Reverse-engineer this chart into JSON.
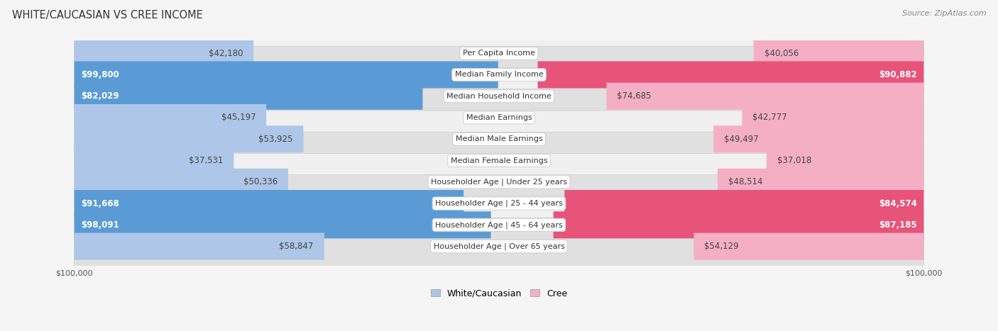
{
  "title": "WHITE/CAUCASIAN VS CREE INCOME",
  "source": "Source: ZipAtlas.com",
  "categories": [
    "Per Capita Income",
    "Median Family Income",
    "Median Household Income",
    "Median Earnings",
    "Median Male Earnings",
    "Median Female Earnings",
    "Householder Age | Under 25 years",
    "Householder Age | 25 - 44 years",
    "Householder Age | 45 - 64 years",
    "Householder Age | Over 65 years"
  ],
  "white_values": [
    42180,
    99800,
    82029,
    45197,
    53925,
    37531,
    50336,
    91668,
    98091,
    58847
  ],
  "cree_values": [
    40056,
    90882,
    74685,
    42777,
    49497,
    37018,
    48514,
    84574,
    87185,
    54129
  ],
  "white_labels": [
    "$42,180",
    "$99,800",
    "$82,029",
    "$45,197",
    "$53,925",
    "$37,531",
    "$50,336",
    "$91,668",
    "$98,091",
    "$58,847"
  ],
  "cree_labels": [
    "$40,056",
    "$90,882",
    "$74,685",
    "$42,777",
    "$49,497",
    "$37,018",
    "$48,514",
    "$84,574",
    "$87,185",
    "$54,129"
  ],
  "max_value": 100000,
  "white_color_light": "#aec6e8",
  "cree_color_light": "#f5afc4",
  "white_color_dark": "#5b9bd5",
  "cree_color_dark": "#e8537a",
  "row_bg_light": "#f0f0f0",
  "row_bg_dark": "#e0e0e0",
  "fig_bg": "#f5f5f5",
  "label_fontsize": 8.5,
  "title_fontsize": 10.5,
  "source_fontsize": 8,
  "axis_fontsize": 8,
  "cat_fontsize": 8,
  "dark_threshold": 0.82
}
